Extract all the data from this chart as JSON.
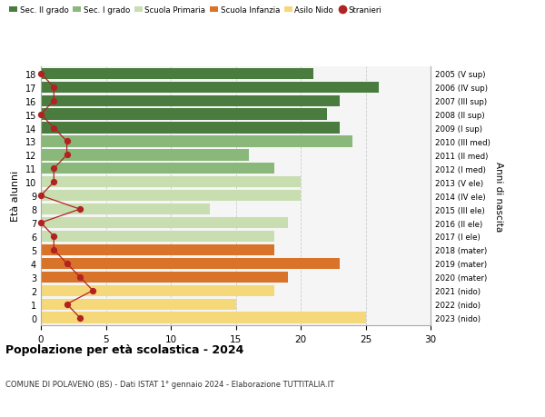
{
  "ages": [
    18,
    17,
    16,
    15,
    14,
    13,
    12,
    11,
    10,
    9,
    8,
    7,
    6,
    5,
    4,
    3,
    2,
    1,
    0
  ],
  "years": [
    "2005 (V sup)",
    "2006 (IV sup)",
    "2007 (III sup)",
    "2008 (II sup)",
    "2009 (I sup)",
    "2010 (III med)",
    "2011 (II med)",
    "2012 (I med)",
    "2013 (V ele)",
    "2014 (IV ele)",
    "2015 (III ele)",
    "2016 (II ele)",
    "2017 (I ele)",
    "2018 (mater)",
    "2019 (mater)",
    "2020 (mater)",
    "2021 (nido)",
    "2022 (nido)",
    "2023 (nido)"
  ],
  "bar_values": [
    21,
    26,
    23,
    22,
    23,
    24,
    16,
    18,
    20,
    20,
    13,
    19,
    18,
    18,
    23,
    19,
    18,
    15,
    25
  ],
  "bar_colors": [
    "#4a7c3f",
    "#4a7c3f",
    "#4a7c3f",
    "#4a7c3f",
    "#4a7c3f",
    "#8ab87a",
    "#8ab87a",
    "#8ab87a",
    "#c8ddb0",
    "#c8ddb0",
    "#c8ddb0",
    "#c8ddb0",
    "#c8ddb0",
    "#d9732a",
    "#d9732a",
    "#d9732a",
    "#f5d87a",
    "#f5d87a",
    "#f5d87a"
  ],
  "stranieri_values": [
    0,
    1,
    1,
    0,
    1,
    2,
    2,
    1,
    1,
    0,
    3,
    0,
    1,
    1,
    2,
    3,
    4,
    2,
    3
  ],
  "title": "Popolazione per età scolastica - 2024",
  "subtitle": "COMUNE DI POLAVENO (BS) - Dati ISTAT 1° gennaio 2024 - Elaborazione TUTTITALIA.IT",
  "ylabel_left": "Età alunni",
  "ylabel_right": "Anni di nascita",
  "xlim": [
    0,
    30
  ],
  "xticks": [
    0,
    5,
    10,
    15,
    20,
    25,
    30
  ],
  "legend_labels": [
    "Sec. II grado",
    "Sec. I grado",
    "Scuola Primaria",
    "Scuola Infanzia",
    "Asilo Nido",
    "Stranieri"
  ],
  "legend_colors": [
    "#4a7c3f",
    "#8ab87a",
    "#c8ddb0",
    "#d9732a",
    "#f5d87a",
    "#b22222"
  ],
  "stranieri_line_color": "#b22222",
  "grid_color": "#cccccc",
  "bg_color": "#f5f5f5"
}
